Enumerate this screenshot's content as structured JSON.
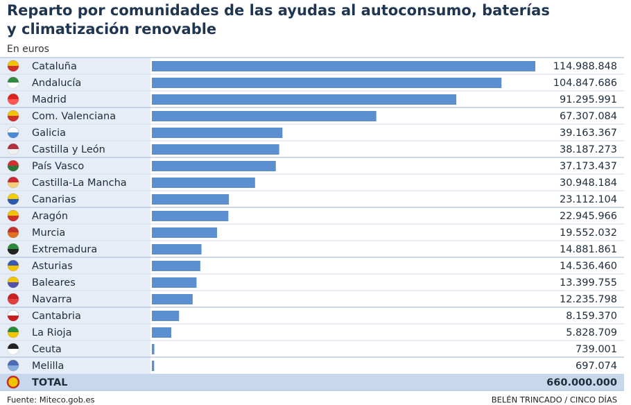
{
  "chart_data": {
    "type": "bar",
    "title": [
      "Reparto por comunidades de las ayudas al autoconsumo, baterías",
      "y climatización renovable"
    ],
    "subtitle": "En euros",
    "categories": [
      "Cataluña",
      "Andalucía",
      "Madrid",
      "Com. Valenciana",
      "Galicia",
      "Castilla y León",
      "País Vasco",
      "Castilla-La Mancha",
      "Canarias",
      "Aragón",
      "Murcia",
      "Extremadura",
      "Asturias",
      "Baleares",
      "Navarra",
      "Cantabria",
      "La Rioja",
      "Ceuta",
      "Melilla"
    ],
    "values": [
      114988848,
      104847686,
      91295991,
      67307084,
      39163367,
      38187273,
      37173437,
      30948184,
      23112104,
      22945966,
      19552032,
      14881861,
      14536460,
      13399755,
      12235798,
      8159370,
      5828709,
      739001,
      697074
    ],
    "value_labels": [
      "114.988.848",
      "104.847.686",
      "91.295.991",
      "67.307.084",
      "39.163.367",
      "38.187.273",
      "37.173.437",
      "30.948.184",
      "23.112.104",
      "22.945.966",
      "19.552.032",
      "14.881.861",
      "14.536.460",
      "13.399.755",
      "12.235.798",
      "8.159.370",
      "5.828.709",
      "739.001",
      "697.074"
    ],
    "color": "#5b8fd0",
    "total": {
      "label": "TOTAL",
      "value": "660.000.000"
    },
    "source": "Fuente: Miteco.gob.es",
    "credit": "BELÉN TRINCADO / CINCO DÍAS"
  }
}
